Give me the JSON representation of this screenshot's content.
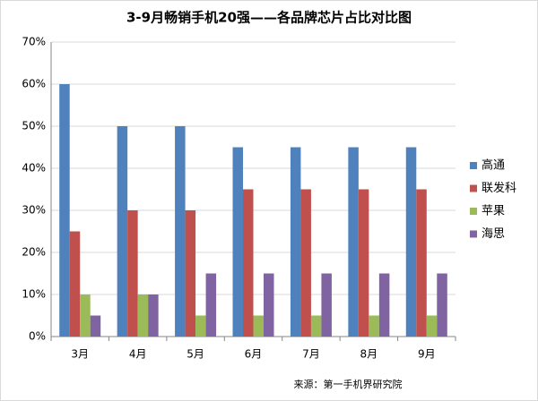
{
  "chart_data": {
    "type": "bar",
    "title": "3-9月畅销手机20强——各品牌芯片占比对比图",
    "source": "来源：第一手机界研究院",
    "categories": [
      "3月",
      "4月",
      "5月",
      "6月",
      "7月",
      "8月",
      "9月"
    ],
    "series": [
      {
        "name": "高通",
        "color": "#4f81bd",
        "values": [
          60,
          50,
          50,
          45,
          45,
          45,
          45
        ]
      },
      {
        "name": "联发科",
        "color": "#c0504d",
        "values": [
          25,
          30,
          30,
          35,
          35,
          35,
          35
        ]
      },
      {
        "name": "苹果",
        "color": "#9bbb59",
        "values": [
          10,
          10,
          5,
          5,
          5,
          5,
          5
        ]
      },
      {
        "name": "海思",
        "color": "#8064a2",
        "values": [
          5,
          10,
          15,
          15,
          15,
          15,
          15
        ]
      }
    ],
    "ylim": [
      0,
      70
    ],
    "yticks": [
      {
        "value": 0,
        "label": "0%"
      },
      {
        "value": 10,
        "label": "10%"
      },
      {
        "value": 20,
        "label": "20%"
      },
      {
        "value": 30,
        "label": "30%"
      },
      {
        "value": 40,
        "label": "40%"
      },
      {
        "value": 50,
        "label": "50%"
      },
      {
        "value": 60,
        "label": "60%"
      },
      {
        "value": 70,
        "label": "70%"
      }
    ],
    "grid": true,
    "legend": "right"
  }
}
